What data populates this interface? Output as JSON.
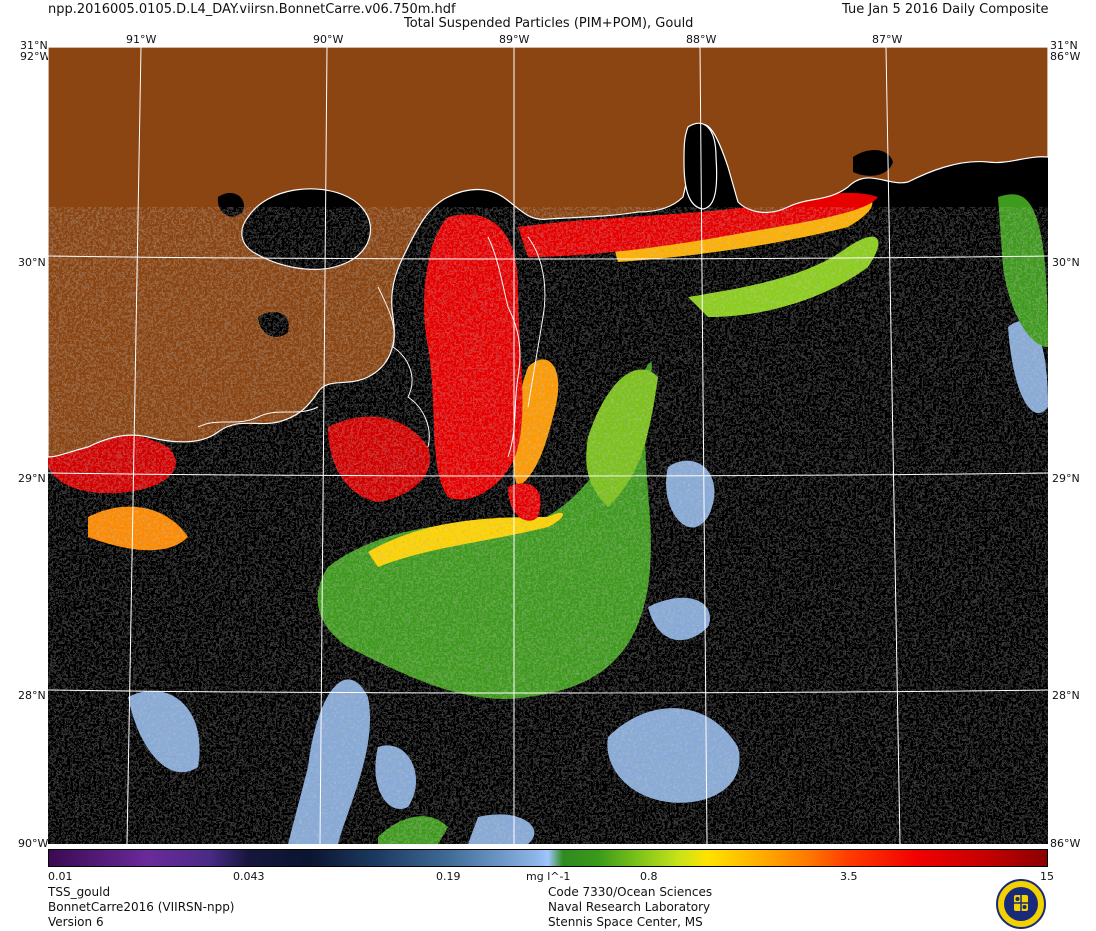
{
  "header": {
    "filename": "npp.2016005.0105.D.L4_DAY.viirsn.BonnetCarre.v06.750m.hdf",
    "title": "Total Suspended Particles (PIM+POM), Gould",
    "date": "Tue Jan  5 2016 Daily Composite"
  },
  "map": {
    "lon_labels_top": [
      "91°W",
      "90°W",
      "89°W",
      "88°W",
      "87°W"
    ],
    "lat_labels": [
      "31°N",
      "30°N",
      "29°N",
      "28°N"
    ],
    "left_top_labels": [
      "31°N",
      "92°W"
    ],
    "right_top_labels": [
      "31°N",
      "86°W"
    ],
    "left_bottom_label": "90°W",
    "right_bottom_label": "86°W",
    "colors": {
      "land": "#8b4513",
      "no_data": "#000000",
      "coastline": "#ffffff",
      "graticule": "#ffffff"
    }
  },
  "colorbar": {
    "ticks": [
      "0.01",
      "0.043",
      "0.19",
      "0.8",
      "3.5",
      "15"
    ],
    "units": "mg l^-1"
  },
  "footer": {
    "left": [
      "TSS_gould",
      "BonnetCarre2016 (VIIRSN-npp)",
      "Version 6"
    ],
    "right": [
      "Code 7330/Ocean Sciences",
      "Naval Research Laboratory",
      "Stennis Space Center, MS"
    ],
    "logo": "nrl-seal-icon"
  }
}
